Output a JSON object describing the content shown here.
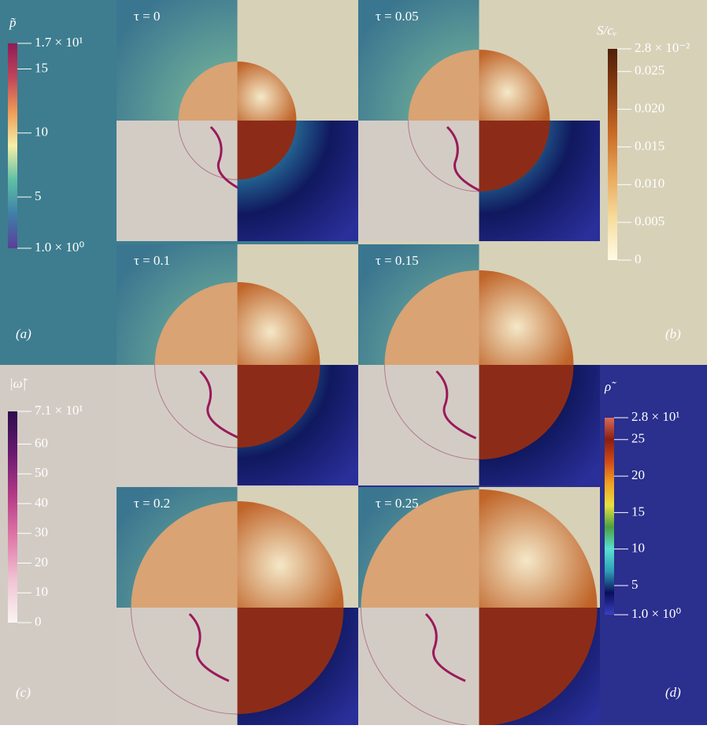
{
  "panels": [
    {
      "label": "τ = 0"
    },
    {
      "label": "τ = 0.05"
    },
    {
      "label": "τ = 0.1"
    },
    {
      "label": "τ = 0.15"
    },
    {
      "label": "τ = 0.2"
    },
    {
      "label": "τ = 0.25"
    }
  ],
  "corner_labels": [
    "(a)",
    "(b)",
    "(c)",
    "(d)"
  ],
  "colorbars": [
    {
      "title": "p̃",
      "lim": [
        1,
        17
      ],
      "colors": [
        "#5b3f9a",
        "#3f7fa8",
        "#5fc0a5",
        "#f4f0a8",
        "#ef9a55",
        "#c0455a",
        "#8e1c55"
      ],
      "ticks": [
        {
          "value": 1,
          "label": "1.0 × 10⁰"
        },
        5,
        10,
        15,
        {
          "value": 17,
          "label": "1.7 × 10¹"
        }
      ]
    },
    {
      "title": "S/cᵥ",
      "lim": [
        0,
        0.028
      ],
      "colors": [
        "#fffbe6",
        "#f6dc9c",
        "#e9a75a",
        "#c96a25",
        "#8e3e12",
        "#4f200a"
      ],
      "ticks": [
        0,
        0.005,
        {
          "value": 0.01,
          "label": "0.010"
        },
        0.015,
        {
          "value": 0.02,
          "label": "0.020"
        },
        0.025,
        {
          "value": 0.028,
          "label": "2.8 × 10⁻²"
        }
      ]
    },
    {
      "title": "|ω̃|",
      "lim": [
        0,
        71
      ],
      "colors": [
        "#fbf4f2",
        "#f0c4d4",
        "#e07aa8",
        "#b43a87",
        "#6a1a70",
        "#2e0c4d"
      ],
      "ticks": [
        0,
        10,
        20,
        30,
        40,
        50,
        60,
        {
          "value": 71,
          "label": "7.1 × 10¹"
        }
      ]
    },
    {
      "title": "ρ̃",
      "lim": [
        1,
        28
      ],
      "colors": [
        "#3a40c0",
        "#0b0e5a",
        "#2fa0b8",
        "#58e0d0",
        "#4aa040",
        "#e8e040",
        "#f0a020",
        "#d04a18",
        "#8a1e10",
        "#d86a5a"
      ],
      "ticks": [
        {
          "value": 1,
          "label": "1.0 × 10⁰"
        },
        5,
        10,
        15,
        20,
        25,
        {
          "value": 28,
          "label": "2.8 × 10¹"
        }
      ]
    }
  ]
}
